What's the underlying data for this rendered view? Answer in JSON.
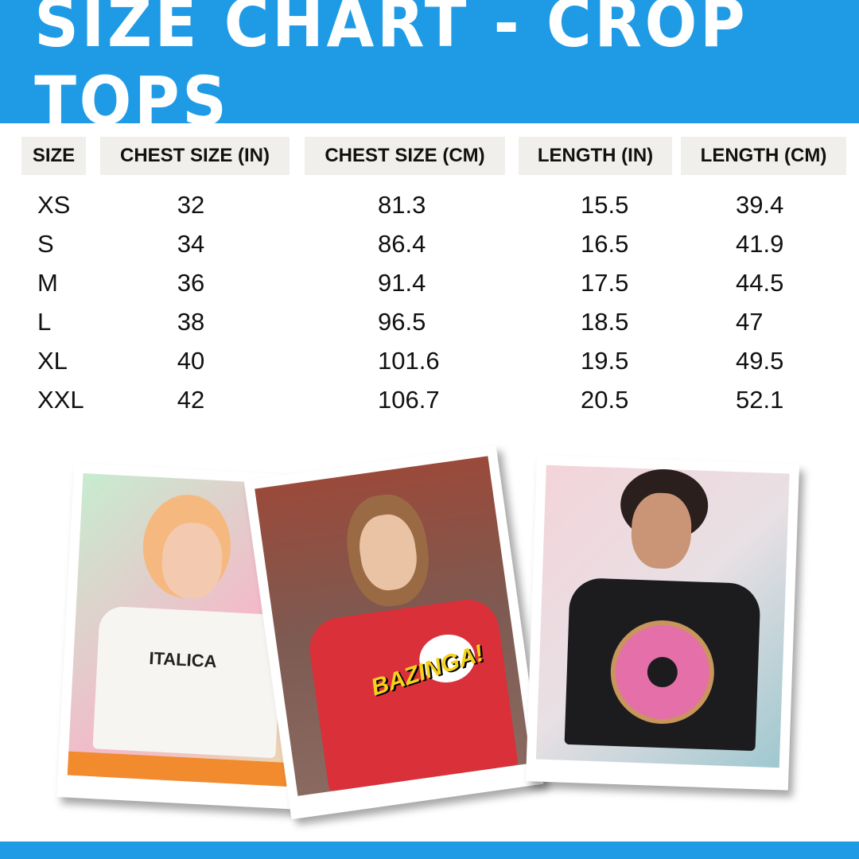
{
  "title": "SIZE CHART - CROP TOPS",
  "colors": {
    "brand": "#1f9be6",
    "header_bg": "#f0efeb"
  },
  "table": {
    "headers": [
      "SIZE",
      "CHEST SIZE (IN)",
      "CHEST SIZE (CM)",
      "LENGTH (IN)",
      "LENGTH (CM)"
    ],
    "rows": [
      [
        "XS",
        "32",
        "81.3",
        "15.5",
        "39.4"
      ],
      [
        "S",
        "34",
        "86.4",
        "16.5",
        "41.9"
      ],
      [
        "M",
        "36",
        "91.4",
        "17.5",
        "44.5"
      ],
      [
        "L",
        "38",
        "96.5",
        "18.5",
        "47"
      ],
      [
        "XL",
        "40",
        "101.6",
        "19.5",
        "49.5"
      ],
      [
        "XXL",
        "42",
        "106.7",
        "20.5",
        "52.1"
      ]
    ]
  },
  "photos": [
    {
      "shirt_text": "ITALICA",
      "shirt_color": "#f7f5f2"
    },
    {
      "shirt_text": "BAZINGA!",
      "shirt_color": "#d9303a"
    },
    {
      "shirt_text": "",
      "shirt_color": "#1c1c1e"
    }
  ]
}
